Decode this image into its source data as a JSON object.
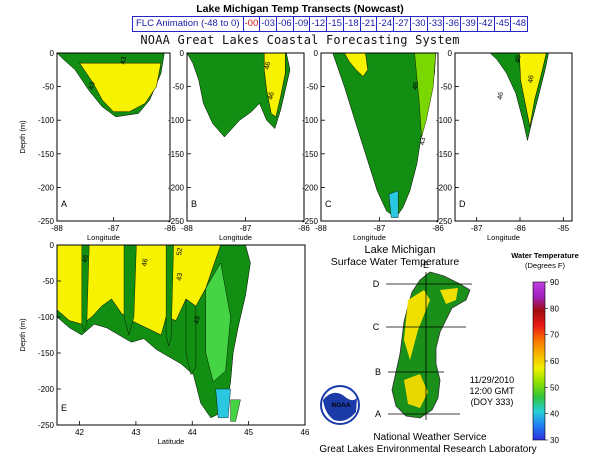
{
  "page": {
    "title": "Lake Michigan Temp Transects (Nowcast)",
    "system_title": "NOAA Great Lakes Coastal Forecasting System"
  },
  "nav": {
    "label": "FLC Animation (-48 to 0)",
    "items": [
      "-00",
      "-03",
      "-06",
      "-09",
      "-12",
      "-15",
      "-18",
      "-21",
      "-24",
      "-27",
      "-30",
      "-33",
      "-36",
      "-39",
      "-42",
      "-45",
      "-48"
    ],
    "current": "-00"
  },
  "colors": {
    "yellow": "#f6f200",
    "green": "#128e12",
    "cyan": "#2ac8e0",
    "lightgreen": "#44d444",
    "lime": "#7ad800"
  },
  "chart_data": [
    {
      "type": "heatmap",
      "panel": "A",
      "xlabel": "Longitude",
      "ylabel": "Depth (m)",
      "xlim": [
        -88,
        -86
      ],
      "ylim": [
        -250,
        0
      ],
      "xticks": [
        -88,
        -87,
        -86
      ],
      "yticks": [
        0,
        -50,
        -100,
        -150,
        -200,
        -250
      ],
      "contours": [
        "43",
        "43"
      ]
    },
    {
      "type": "heatmap",
      "panel": "B",
      "xlabel": "Longitude",
      "ylabel": "",
      "xlim": [
        -88,
        -86
      ],
      "ylim": [
        -250,
        0
      ],
      "xticks": [
        -88,
        -87,
        -86
      ],
      "yticks": [
        0,
        -50,
        -100,
        -150,
        -200,
        -250
      ],
      "contours": [
        "46",
        "46"
      ]
    },
    {
      "type": "heatmap",
      "panel": "C",
      "xlabel": "Longitude",
      "ylabel": "",
      "xlim": [
        -88,
        -86
      ],
      "ylim": [
        -250,
        0
      ],
      "xticks": [
        -88,
        -87,
        -86
      ],
      "yticks": [
        0,
        -50,
        -100,
        -150,
        -200,
        -250
      ],
      "contours": [
        "46",
        "43"
      ]
    },
    {
      "type": "heatmap",
      "panel": "D",
      "xlabel": "Longitude",
      "ylabel": "",
      "xlim": [
        -87.5,
        -84.8
      ],
      "ylim": [
        -250,
        0
      ],
      "xticks": [
        -87,
        -86,
        -85
      ],
      "yticks": [
        0,
        -50,
        -100,
        -150,
        -200,
        -250
      ],
      "contours": [
        "46",
        "46",
        "46"
      ]
    },
    {
      "type": "heatmap",
      "panel": "E",
      "xlabel": "Latitude",
      "ylabel": "Depth (m)",
      "xlim": [
        41.6,
        46
      ],
      "ylim": [
        -250,
        0
      ],
      "xticks": [
        42,
        43,
        44,
        45,
        46
      ],
      "yticks": [
        0,
        -50,
        -100,
        -150,
        -200,
        -250
      ],
      "contours": [
        "46",
        "46",
        "43",
        "43",
        "52"
      ]
    }
  ],
  "map": {
    "title_line1": "Lake Michigan",
    "title_line2": "Surface Water Temperature",
    "transects": [
      "A",
      "B",
      "C",
      "D",
      "E"
    ],
    "date": "11/29/2010",
    "time": "12:00 GMT",
    "doy": "(DOY 333)",
    "logo_text": "NOAA",
    "credit1": "National Weather Service",
    "credit2": "Great Lakes Environmental Research Laboratory"
  },
  "colorbar": {
    "title1": "Water Temperature",
    "title2": "(Degrees F)",
    "min": 30,
    "max": 90,
    "ticks": [
      30,
      40,
      50,
      60,
      70,
      80,
      90
    ],
    "stops": [
      "#3030e0",
      "#1e7ef0",
      "#28d0d8",
      "#2ec43a",
      "#8ee000",
      "#f0f000",
      "#f8b400",
      "#f87000",
      "#e81818",
      "#a00c0c",
      "#a020c0",
      "#c040e0"
    ]
  }
}
